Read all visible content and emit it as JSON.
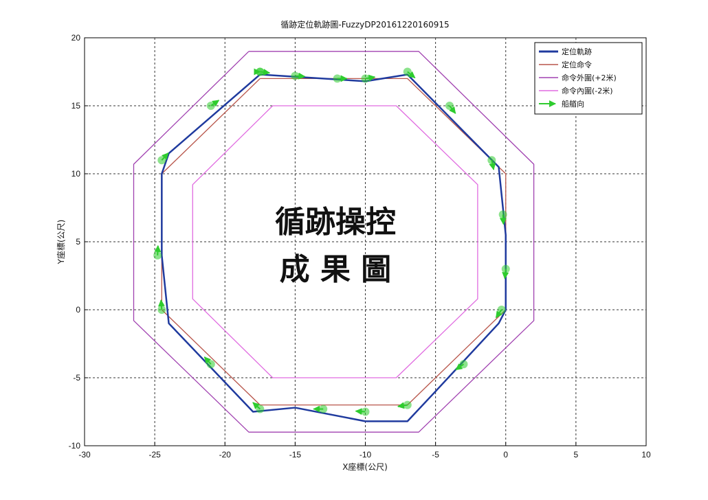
{
  "chart_data": {
    "type": "line",
    "title": "循跡定位軌跡圖-FuzzyDP20161220160915",
    "xlabel": "X座標(公尺)",
    "ylabel": "Y座標(公尺)",
    "xlim": [
      -30,
      10
    ],
    "ylim": [
      -10,
      20
    ],
    "xticks": [
      -30,
      -25,
      -20,
      -15,
      -10,
      -5,
      0,
      5,
      10
    ],
    "yticks": [
      -10,
      -5,
      0,
      5,
      10,
      15,
      20
    ],
    "grid": true,
    "legend_position": "top-right",
    "annotation_lines": [
      "循跡操控",
      "成 果 圖"
    ],
    "series": [
      {
        "name": "定位軌跡",
        "color": "#1f3a9e",
        "x": [
          -17.5,
          -10,
          -7,
          -0.5,
          0,
          0,
          -0.5,
          -5,
          -7,
          -10,
          -15,
          -18,
          -24,
          -24.5,
          -24.5,
          -24,
          -17.5
        ],
        "y": [
          17.3,
          16.8,
          17.3,
          10.5,
          5.5,
          0,
          -1,
          -6,
          -8.2,
          -8.2,
          -7.2,
          -7.5,
          -1,
          4,
          10,
          11.5,
          17.3
        ]
      },
      {
        "name": "定位命令",
        "color": "#b8554a",
        "x": [
          -17.5,
          -7,
          0,
          0,
          -7,
          -17.5,
          -24.5,
          -24.5,
          -17.5
        ],
        "y": [
          17,
          17,
          10,
          0,
          -7,
          -7,
          0,
          10,
          17
        ]
      },
      {
        "name": "命令外圍(+2米)",
        "color": "#a040b0",
        "x": [
          -18.3,
          -6.2,
          2,
          2,
          -6.2,
          -18.3,
          -26.5,
          -26.5,
          -18.3
        ],
        "y": [
          19,
          19,
          10.7,
          -0.8,
          -9,
          -9,
          -0.8,
          10.7,
          19
        ]
      },
      {
        "name": "命令內圍(-2米)",
        "color": "#e06ae0",
        "x": [
          -16.6,
          -7.8,
          -2,
          -2,
          -7.8,
          -16.6,
          -22.3,
          -22.3,
          -16.6
        ],
        "y": [
          15,
          15,
          9.2,
          0.8,
          -5,
          -5,
          0.8,
          9.2,
          15
        ]
      },
      {
        "name": "船艏向",
        "color": "#2ecc2e",
        "marker": "arrow",
        "x": [
          -17.5,
          -15,
          -12,
          -10,
          -7,
          -4,
          -1,
          -0.2,
          0,
          -0.3,
          -3,
          -7,
          -10,
          -13,
          -17.5,
          -21,
          -24.5,
          -24.8,
          -24.5,
          -21,
          -17.5
        ],
        "y": [
          17.5,
          17.2,
          17,
          17,
          17.5,
          15,
          11,
          7,
          3,
          0,
          -4,
          -7,
          -7.5,
          -7.3,
          -7.3,
          -4,
          0,
          4,
          11,
          15,
          17.5
        ]
      }
    ]
  }
}
